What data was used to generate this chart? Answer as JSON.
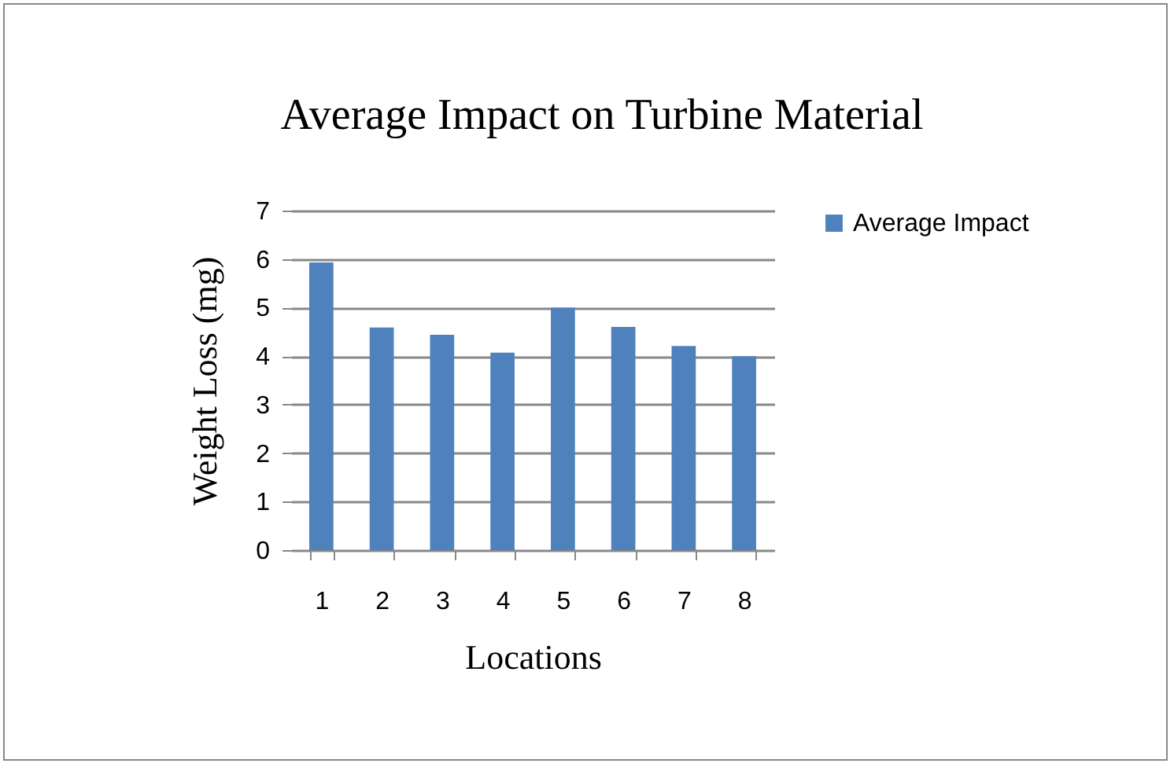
{
  "chart_data": {
    "type": "bar",
    "title": "Average Impact on Turbine Material",
    "xlabel": "Locations",
    "ylabel": "Weight Loss (mg)",
    "categories": [
      "1",
      "2",
      "3",
      "4",
      "5",
      "6",
      "7",
      "8"
    ],
    "series": [
      {
        "name": "Average Impact",
        "color": "#4f81bd",
        "values": [
          5.93,
          4.59,
          4.44,
          4.07,
          5.0,
          4.6,
          4.21,
          4.0
        ]
      }
    ],
    "ylim": [
      0,
      7
    ],
    "yticks": [
      0,
      1,
      2,
      3,
      4,
      5,
      6,
      7
    ],
    "grid": "y",
    "legend": "right"
  }
}
